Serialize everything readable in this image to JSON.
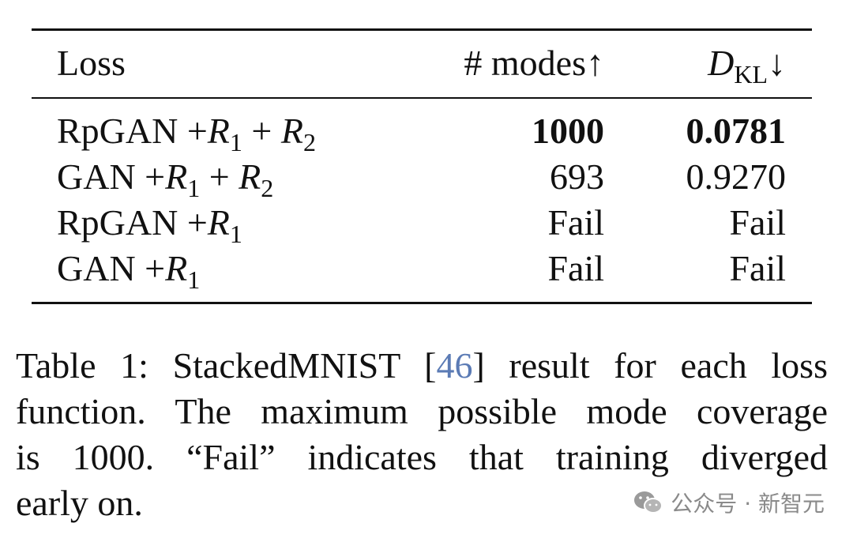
{
  "table": {
    "header": {
      "loss": [
        "Loss"
      ],
      "modes": [
        "# modes↑"
      ],
      "dkl": [
        "D",
        "KL",
        "↓"
      ]
    },
    "rows": [
      {
        "loss": [
          "RpGAN +",
          "R",
          "1",
          " + ",
          "R",
          "2"
        ],
        "modes": "1000",
        "dkl": "0.0781",
        "bold": true
      },
      {
        "loss": [
          "GAN +",
          "R",
          "1",
          " + ",
          "R",
          "2"
        ],
        "modes": "693",
        "dkl": "0.9270",
        "bold": false
      },
      {
        "loss": [
          "RpGAN +",
          "R",
          "1"
        ],
        "modes": "Fail",
        "dkl": "Fail",
        "bold": false
      },
      {
        "loss": [
          "GAN +",
          "R",
          "1"
        ],
        "modes": "Fail",
        "dkl": "Fail",
        "bold": false
      }
    ]
  },
  "caption": {
    "lines": [
      [
        "Table 1: StackedMNIST [",
        "46",
        "] result for each loss"
      ],
      [
        "function. The maximum possible mode coverage"
      ],
      [
        "is 1000. “Fail” indicates that training diverged"
      ],
      [
        "early on."
      ]
    ],
    "link_color": "#5b7bb5"
  },
  "watermark": "公众号 · 新智元"
}
